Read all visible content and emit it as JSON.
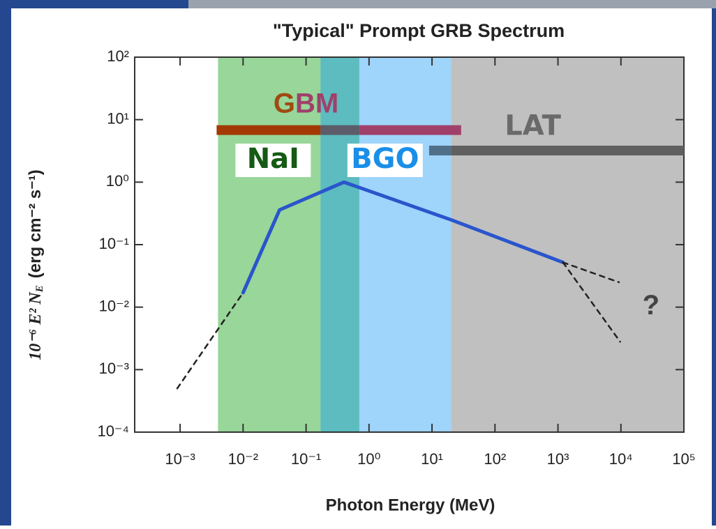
{
  "chart_data": {
    "type": "line",
    "title": "\"Typical\" Prompt GRB Spectrum",
    "xlabel": "Photon Energy (MeV)",
    "ylabel_math": "10⁻⁶ E² N",
    "ylabel_sub": "E",
    "ylabel_units": "(erg cm⁻² s⁻¹)",
    "log_x": true,
    "log_y": true,
    "xlim": [
      0.00019,
      100000
    ],
    "ylim": [
      0.0001,
      100
    ],
    "xticks": [
      {
        "value": 0.001,
        "label": "10⁻³"
      },
      {
        "value": 0.01,
        "label": "10⁻²"
      },
      {
        "value": 0.1,
        "label": "10⁻¹"
      },
      {
        "value": 1,
        "label": "10⁰"
      },
      {
        "value": 10,
        "label": "10¹"
      },
      {
        "value": 100,
        "label": "10²"
      },
      {
        "value": 1000,
        "label": "10³"
      },
      {
        "value": 10000,
        "label": "10⁴"
      },
      {
        "value": 100000,
        "label": "10⁵"
      }
    ],
    "yticks": [
      {
        "value": 0.0001,
        "label": "10⁻⁴"
      },
      {
        "value": 0.001,
        "label": "10⁻³"
      },
      {
        "value": 0.01,
        "label": "10⁻²"
      },
      {
        "value": 0.1,
        "label": "10⁻¹"
      },
      {
        "value": 1,
        "label": "10⁰"
      },
      {
        "value": 10,
        "label": "10¹"
      },
      {
        "value": 100,
        "label": "10²"
      }
    ],
    "instruments": [
      {
        "label": "NaI",
        "band": [
          0.004,
          0.7
        ],
        "band_color": "#98d699",
        "label_color": "#155a15"
      },
      {
        "label": "BGO",
        "band": [
          0.17,
          20
        ],
        "band_color": "#9fd4fb",
        "label_color": "#1a8fe8"
      },
      {
        "label": "LAT",
        "band": [
          20,
          100000
        ],
        "band_color": "#c0c0c0",
        "label_color": "#6a6a6a"
      }
    ],
    "overlap_color": "#5cbcbf",
    "gbm": {
      "label_parts": [
        "G",
        "BM"
      ],
      "label_colors": [
        "#a04a10",
        "#a0406a"
      ],
      "level": 6.8,
      "segments": [
        [
          0.0038,
          0.17
        ],
        [
          0.17,
          0.7
        ],
        [
          0.7,
          29
        ]
      ],
      "segment_colors": [
        "#a33a05",
        "#5c5c6a",
        "#a0406a"
      ]
    },
    "lat_bar": {
      "level": 3.2,
      "segments": [
        [
          9,
          20
        ],
        [
          20,
          100000
        ]
      ],
      "segment_colors": [
        "#50708a",
        "#606060"
      ]
    },
    "series": [
      {
        "style": "solid",
        "color": "#2a55cc",
        "x": [
          0.01,
          0.038,
          0.4,
          20,
          1200
        ],
        "values": [
          0.017,
          0.36,
          1,
          0.25,
          0.052
        ]
      },
      {
        "style": "dashed",
        "color": "#222222",
        "x": [
          0.0009,
          0.01
        ],
        "values": [
          0.0005,
          0.017
        ]
      },
      {
        "style": "dashed",
        "color": "#222222",
        "x": [
          1200,
          9300
        ],
        "values": [
          0.052,
          0.025
        ]
      },
      {
        "style": "dashed",
        "color": "#222222",
        "x": [
          1200,
          9700
        ],
        "values": [
          0.052,
          0.0028
        ]
      }
    ],
    "annotation": "?"
  }
}
